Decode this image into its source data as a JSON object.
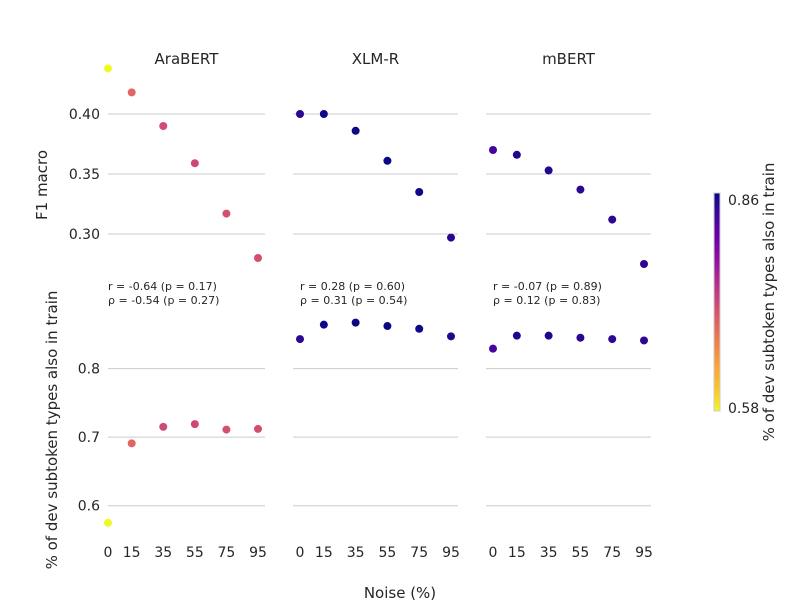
{
  "chart_data": {
    "type": "scatter",
    "panels": [
      {
        "title": "AraBERT",
        "f1_macro": [
          0.438,
          0.418,
          0.39,
          0.359,
          0.317,
          0.28
        ],
        "overlap": [
          0.575,
          0.691,
          0.715,
          0.719,
          0.711,
          0.712
        ],
        "annotation": [
          "r = -0.64 (p = 0.17)",
          "ρ = -0.54 (p = 0.27)"
        ]
      },
      {
        "title": "XLM-R",
        "f1_macro": [
          0.4,
          0.4,
          0.386,
          0.361,
          0.335,
          0.297
        ],
        "overlap": [
          0.843,
          0.864,
          0.867,
          0.862,
          0.858,
          0.847
        ],
        "annotation": [
          "r = 0.28 (p = 0.60)",
          "ρ = 0.31 (p = 0.54)"
        ]
      },
      {
        "title": "mBERT",
        "f1_macro": [
          0.37,
          0.366,
          0.353,
          0.337,
          0.312,
          0.275
        ],
        "overlap": [
          0.829,
          0.848,
          0.848,
          0.845,
          0.843,
          0.841
        ],
        "annotation": [
          "r = -0.07 (p = 0.89)",
          "ρ = 0.12 (p = 0.83)"
        ]
      }
    ],
    "x": [
      0,
      15,
      35,
      55,
      75,
      95
    ],
    "x_tick_labels": [
      "0",
      "15",
      "35",
      "55",
      "75",
      "95"
    ],
    "xlabel": "Noise (%)",
    "top_ylabel": "F1 macro",
    "bottom_ylabel": "% of dev subtoken types also in train",
    "top_yticks": [
      0.3,
      0.35,
      0.4
    ],
    "top_ytick_labels": [
      "0.30",
      "0.35",
      "0.40"
    ],
    "top_ylim": [
      0.27,
      0.445
    ],
    "bottom_yticks": [
      0.6,
      0.7,
      0.8
    ],
    "bottom_ytick_labels": [
      "0.6",
      "0.7",
      "0.8"
    ],
    "bottom_ylim": [
      0.55,
      0.9
    ],
    "colorbar": {
      "label": "% of dev subtoken types also in train",
      "min": 0.58,
      "max": 0.86,
      "min_label": "0.58",
      "max_label": "0.86",
      "colormap": "plasma",
      "colormap_reversed": true
    },
    "grid": "horizontal"
  }
}
